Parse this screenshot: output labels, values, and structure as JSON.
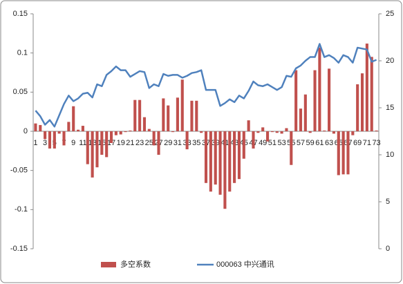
{
  "chart_data": {
    "type": "bar_line",
    "categories": [
      "1",
      null,
      "3",
      null,
      "5",
      null,
      "7",
      null,
      "9",
      null,
      "11",
      null,
      "13",
      null,
      "15",
      null,
      "17",
      null,
      "19",
      null,
      "21",
      null,
      "23",
      null,
      "25",
      null,
      "27",
      null,
      "29",
      null,
      "31",
      null,
      "33",
      null,
      "35",
      null,
      "37",
      null,
      "39",
      null,
      "41",
      null,
      "43",
      null,
      "45",
      null,
      "47",
      null,
      "49",
      null,
      "51",
      null,
      "53",
      null,
      "55",
      null,
      "57",
      null,
      "59",
      null,
      "61",
      null,
      "63",
      null,
      "65",
      null,
      "67",
      null,
      "69",
      null,
      "71",
      null,
      "73"
    ],
    "series": [
      {
        "name": "多空系数",
        "color": "#c0504d",
        "kind": "bar",
        "values": [
          0.01,
          0.008,
          -0.01,
          -0.022,
          -0.022,
          -0.003,
          -0.018,
          0.012,
          0.032,
          0.002,
          0.007,
          -0.042,
          -0.059,
          -0.046,
          -0.03,
          -0.033,
          -0.015,
          -0.005,
          -0.004,
          -0.001,
          0.001,
          0.04,
          0.04,
          0.018,
          0.003,
          -0.018,
          -0.03,
          0.042,
          0.033,
          -0.001,
          0.043,
          0.066,
          -0.023,
          0.039,
          0.039,
          -0.002,
          -0.066,
          -0.077,
          -0.068,
          -0.081,
          -0.099,
          -0.077,
          -0.066,
          -0.061,
          -0.035,
          0.014,
          -0.022,
          -0.002,
          0.005,
          -0.013,
          -0.001,
          -0.002,
          -0.003,
          0.004,
          -0.043,
          0.078,
          0.029,
          0.047,
          -0.002,
          0.078,
          0.107,
          0.001,
          0.08,
          -0.003,
          -0.056,
          -0.055,
          -0.055,
          -0.005,
          0.06,
          0.074,
          0.112,
          0.095,
          0.001
        ]
      },
      {
        "name": "000063 中兴通讯",
        "color": "#4f81bd",
        "kind": "line",
        "axis": "y2",
        "values": [
          14.7,
          14.1,
          13.2,
          13.7,
          13.0,
          14.2,
          15.4,
          16.3,
          15.7,
          16.0,
          16.5,
          16.6,
          16.1,
          17.5,
          17.3,
          18.5,
          18.9,
          19.4,
          19.0,
          19.0,
          18.3,
          18.6,
          18.9,
          18.8,
          17.1,
          17.5,
          17.3,
          18.6,
          18.4,
          18.5,
          18.5,
          18.2,
          18.4,
          18.7,
          18.8,
          19.0,
          16.9,
          16.9,
          16.9,
          15.2,
          15.5,
          15.9,
          15.6,
          16.3,
          16.0,
          16.8,
          17.8,
          17.4,
          17.3,
          17.5,
          17.2,
          16.9,
          17.2,
          18.4,
          18.3,
          19.2,
          19.5,
          20.0,
          20.4,
          20.4,
          21.8,
          20.4,
          20.6,
          20.3,
          19.8,
          20.6,
          20.4,
          19.8,
          21.4,
          21.3,
          21.2,
          19.9,
          20.1
        ]
      }
    ],
    "ylim": [
      -0.15,
      0.15
    ],
    "yticks": [
      -0.15,
      -0.1,
      -0.05,
      0,
      0.05,
      0.1,
      0.15
    ],
    "y2lim": [
      0,
      25
    ],
    "y2ticks": [
      0,
      5,
      10,
      15,
      20,
      25
    ],
    "legend": "bottom"
  }
}
